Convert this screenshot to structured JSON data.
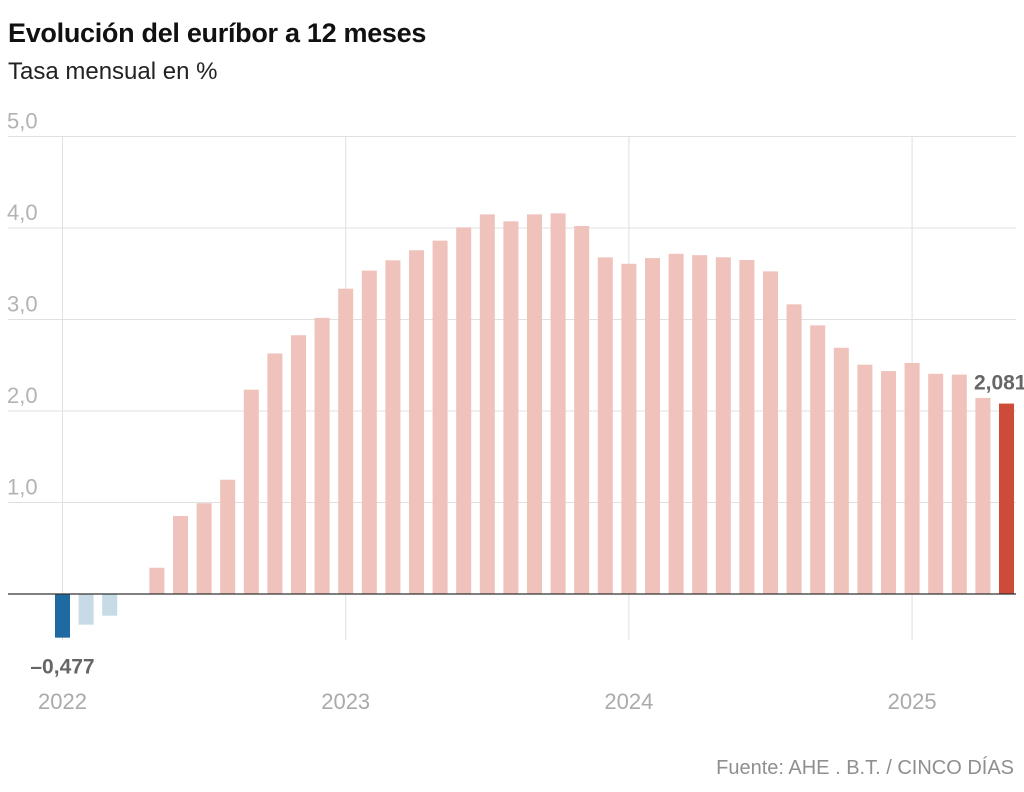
{
  "title": "Evolución del euríbor a 12 meses",
  "subtitle": "Tasa mensual en %",
  "source": "Fuente: AHE . B.T. / CINCO DÍAS",
  "colors": {
    "negative": "#c6dbe6",
    "negative_highlight": "#1f6aa0",
    "positive": "#efc2bb",
    "positive_highlight": "#cc4b39",
    "grid": "#e0e0e0",
    "zero_line": "#333333"
  },
  "chart_data": {
    "type": "bar",
    "ylim": [
      -0.6,
      5.0
    ],
    "yticks": [
      "1,0",
      "2,0",
      "3,0",
      "4,0",
      "5,0"
    ],
    "xticks": [
      "2022",
      "2023",
      "2024",
      "2025"
    ],
    "categories": [
      "2022-01",
      "2022-02",
      "2022-03",
      "2022-04",
      "2022-05",
      "2022-06",
      "2022-07",
      "2022-08",
      "2022-09",
      "2022-10",
      "2022-11",
      "2022-12",
      "2023-01",
      "2023-02",
      "2023-03",
      "2023-04",
      "2023-05",
      "2023-06",
      "2023-07",
      "2023-08",
      "2023-09",
      "2023-10",
      "2023-11",
      "2023-12",
      "2024-01",
      "2024-02",
      "2024-03",
      "2024-04",
      "2024-05",
      "2024-06",
      "2024-07",
      "2024-08",
      "2024-09",
      "2024-10",
      "2024-11",
      "2024-12",
      "2025-01",
      "2025-02",
      "2025-03",
      "2025-04",
      "2025-05"
    ],
    "values": [
      -0.477,
      -0.335,
      -0.237,
      0.0,
      0.287,
      0.852,
      0.992,
      1.249,
      2.233,
      2.629,
      2.828,
      3.018,
      3.337,
      3.534,
      3.647,
      3.757,
      3.862,
      4.007,
      4.149,
      4.073,
      4.149,
      4.16,
      4.022,
      3.679,
      3.609,
      3.671,
      3.718,
      3.703,
      3.68,
      3.65,
      3.526,
      3.166,
      2.936,
      2.691,
      2.506,
      2.436,
      2.525,
      2.407,
      2.398,
      2.143,
      2.081
    ],
    "annotations": [
      {
        "label": "–0,477",
        "index": 0
      },
      {
        "label": "2,081",
        "index": 40
      }
    ]
  }
}
